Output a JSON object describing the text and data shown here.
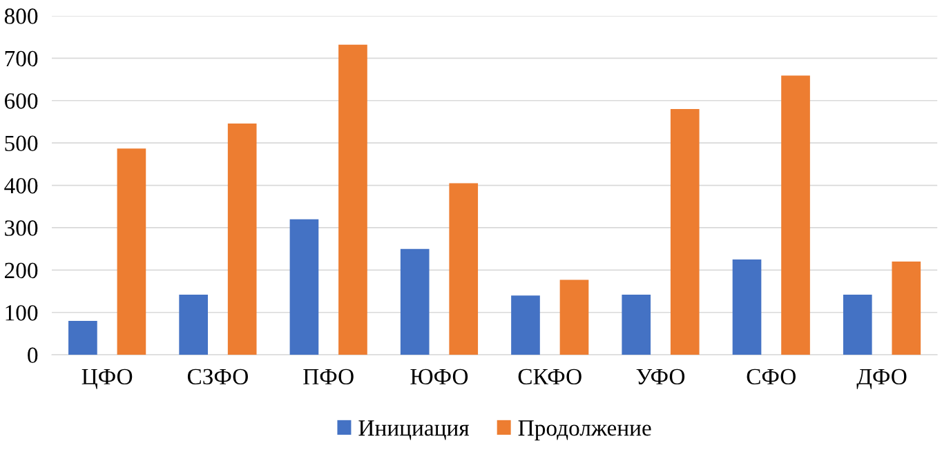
{
  "chart_data": {
    "type": "bar",
    "categories": [
      "ЦФО",
      "СЗФО",
      "ПФО",
      "ЮФО",
      "СКФО",
      "УФО",
      "СФО",
      "ДФО"
    ],
    "series": [
      {
        "name": "Инициация",
        "color": "#4472c4",
        "values": [
          80,
          142,
          320,
          250,
          140,
          142,
          225,
          142
        ]
      },
      {
        "name": "Продолжение",
        "color": "#ed7d31",
        "values": [
          487,
          546,
          732,
          405,
          177,
          580,
          659,
          220
        ]
      }
    ],
    "ylim": [
      0,
      800
    ],
    "yticks": [
      0,
      100,
      200,
      300,
      400,
      500,
      600,
      700,
      800
    ],
    "grid": "y",
    "legend": "bottom"
  }
}
